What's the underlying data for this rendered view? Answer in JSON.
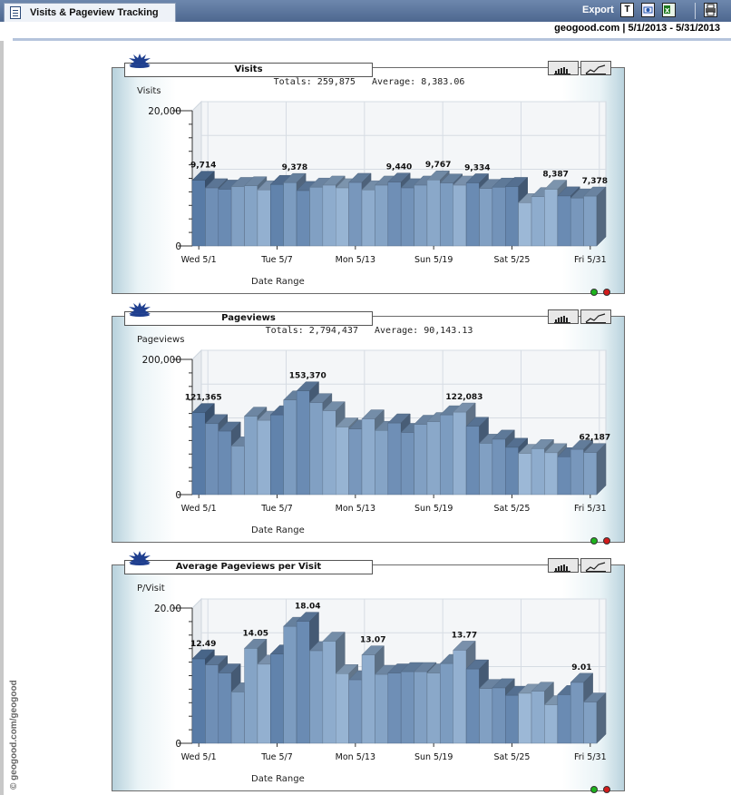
{
  "header": {
    "tab_title": "Visits & Pageview Tracking",
    "export_label": "Export",
    "site": "geogood.com",
    "date_range": "5/1/2013 - 5/31/2013",
    "site_range": "geogood.com | 5/1/2013 - 5/31/2013",
    "icons": [
      "text-export-icon",
      "xml-export-icon",
      "excel-export-icon",
      "print-icon"
    ]
  },
  "watermark": "© geogood.com/geogood",
  "colors": {
    "bar_dark": "#4f739f",
    "bar_light": "#a9c4e0",
    "header_bg": "#5a7399",
    "green_dot": "#1db41d",
    "red_dot": "#d21b1b"
  },
  "panels": [
    {
      "title": "Visits",
      "totals": "Totals: 259,875   Average: 8,383.06",
      "y_label": "Visits",
      "x_title": "Date Range",
      "y_ticks": [
        "20,000",
        "0"
      ],
      "x_ticks": [
        "Wed 5/1",
        "Tue 5/7",
        "Mon 5/13",
        "Sun 5/19",
        "Sat 5/25",
        "Fri 5/31"
      ]
    },
    {
      "title": "Pageviews",
      "totals": "Totals: 2,794,437   Average: 90,143.13",
      "y_label": "Pageviews",
      "x_title": "Date Range",
      "y_ticks": [
        "200,000",
        "0"
      ],
      "x_ticks": [
        "Wed 5/1",
        "Tue 5/7",
        "Mon 5/13",
        "Sun 5/19",
        "Sat 5/25",
        "Fri 5/31"
      ]
    },
    {
      "title": "Average Pageviews per Visit",
      "totals": "",
      "y_label": "P/Visit",
      "x_title": "Date Range",
      "y_ticks": [
        "20.00",
        "0"
      ],
      "x_ticks": [
        "Wed 5/1",
        "Tue 5/7",
        "Mon 5/13",
        "Sun 5/19",
        "Sat 5/25",
        "Fri 5/31"
      ]
    }
  ],
  "chart_data": [
    {
      "type": "bar",
      "title": "Visits",
      "ylabel": "Visits",
      "xlabel": "Date Range",
      "ylim": [
        0,
        20000
      ],
      "categories": [
        "5/1",
        "5/2",
        "5/3",
        "5/4",
        "5/5",
        "5/6",
        "5/7",
        "5/8",
        "5/9",
        "5/10",
        "5/11",
        "5/12",
        "5/13",
        "5/14",
        "5/15",
        "5/16",
        "5/17",
        "5/18",
        "5/19",
        "5/20",
        "5/21",
        "5/22",
        "5/23",
        "5/24",
        "5/25",
        "5/26",
        "5/27",
        "5/28",
        "5/29",
        "5/30",
        "5/31"
      ],
      "values": [
        9714,
        8600,
        8400,
        8800,
        8900,
        8300,
        9100,
        9378,
        8200,
        8700,
        9000,
        8600,
        9400,
        8300,
        9000,
        9440,
        8600,
        9000,
        9767,
        9300,
        9000,
        9334,
        8500,
        8700,
        8800,
        6400,
        7300,
        8387,
        7400,
        7100,
        7378
      ],
      "data_labels": [
        [
          0,
          "9,714"
        ],
        [
          7,
          "9,378"
        ],
        [
          15,
          "9,440"
        ],
        [
          18,
          "9,767"
        ],
        [
          21,
          "9,334"
        ],
        [
          27,
          "8,387"
        ],
        [
          30,
          "7,378"
        ]
      ]
    },
    {
      "type": "bar",
      "title": "Pageviews",
      "ylabel": "Pageviews",
      "xlabel": "Date Range",
      "ylim": [
        0,
        200000
      ],
      "categories": [
        "5/1",
        "5/2",
        "5/3",
        "5/4",
        "5/5",
        "5/6",
        "5/7",
        "5/8",
        "5/9",
        "5/10",
        "5/11",
        "5/12",
        "5/13",
        "5/14",
        "5/15",
        "5/16",
        "5/17",
        "5/18",
        "5/19",
        "5/20",
        "5/21",
        "5/22",
        "5/23",
        "5/24",
        "5/25",
        "5/26",
        "5/27",
        "5/28",
        "5/29",
        "5/30",
        "5/31"
      ],
      "values": [
        121365,
        105000,
        94000,
        72000,
        116000,
        110000,
        118000,
        140000,
        153370,
        136000,
        124000,
        100000,
        97000,
        112000,
        95000,
        106000,
        92000,
        104000,
        108000,
        118000,
        122083,
        101000,
        76000,
        82000,
        70000,
        61000,
        68000,
        62000,
        56000,
        67000,
        62187
      ],
      "data_labels": [
        [
          0,
          "121,365"
        ],
        [
          8,
          "153,370"
        ],
        [
          20,
          "122,083"
        ],
        [
          30,
          "62,187"
        ]
      ]
    },
    {
      "type": "bar",
      "title": "Average Pageviews per Visit",
      "ylabel": "P/Visit",
      "xlabel": "Date Range",
      "ylim": [
        0,
        20
      ],
      "categories": [
        "5/1",
        "5/2",
        "5/3",
        "5/4",
        "5/5",
        "5/6",
        "5/7",
        "5/8",
        "5/9",
        "5/10",
        "5/11",
        "5/12",
        "5/13",
        "5/14",
        "5/15",
        "5/16",
        "5/17",
        "5/18",
        "5/19",
        "5/20",
        "5/21",
        "5/22",
        "5/23",
        "5/24",
        "5/25",
        "5/26",
        "5/27",
        "5/28",
        "5/29",
        "5/30",
        "5/31"
      ],
      "values": [
        12.49,
        11.6,
        10.4,
        7.6,
        14.05,
        11.7,
        13.2,
        17.3,
        18.04,
        13.7,
        15.1,
        10.3,
        9.4,
        13.07,
        10.2,
        10.4,
        10.6,
        10.6,
        10.4,
        11.8,
        13.77,
        11.0,
        8.1,
        8.2,
        7.1,
        7.4,
        7.7,
        5.7,
        7.2,
        9.01,
        6.1
      ],
      "data_labels": [
        [
          0,
          "12.49"
        ],
        [
          4,
          "14.05"
        ],
        [
          8,
          "18.04"
        ],
        [
          13,
          "13.07"
        ],
        [
          20,
          "13.77"
        ],
        [
          29,
          "9.01"
        ]
      ]
    }
  ]
}
